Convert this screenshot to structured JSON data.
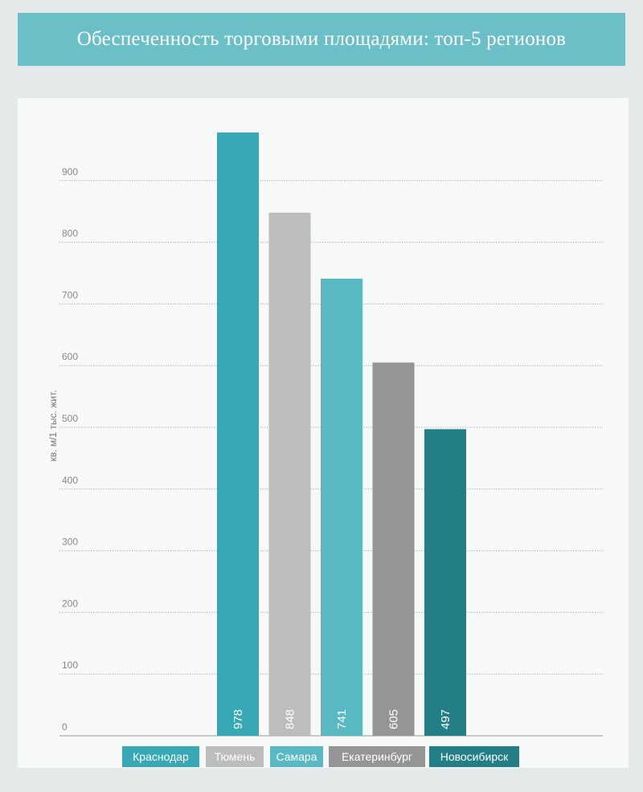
{
  "title": "Обеспеченность торговыми площадями: топ-5 регионов",
  "chart_data": {
    "type": "bar",
    "title": "Обеспеченность торговыми площадями: топ-5 регионов",
    "ylabel": "кв. м/1 тыс. жит.",
    "xlabel": "",
    "ylim": [
      0,
      1000
    ],
    "yticks": [
      0,
      100,
      200,
      300,
      400,
      500,
      600,
      700,
      800,
      900
    ],
    "grid": true,
    "legend": "bottom",
    "categories": [
      "Краснодар",
      "Тюмень",
      "Самара",
      "Екатеринбург",
      "Новосибирск"
    ],
    "values": [
      978,
      848,
      741,
      605,
      497
    ],
    "colors": [
      "#36a9b5",
      "#bdbdbd",
      "#58b8c3",
      "#959595",
      "#237e85"
    ]
  }
}
